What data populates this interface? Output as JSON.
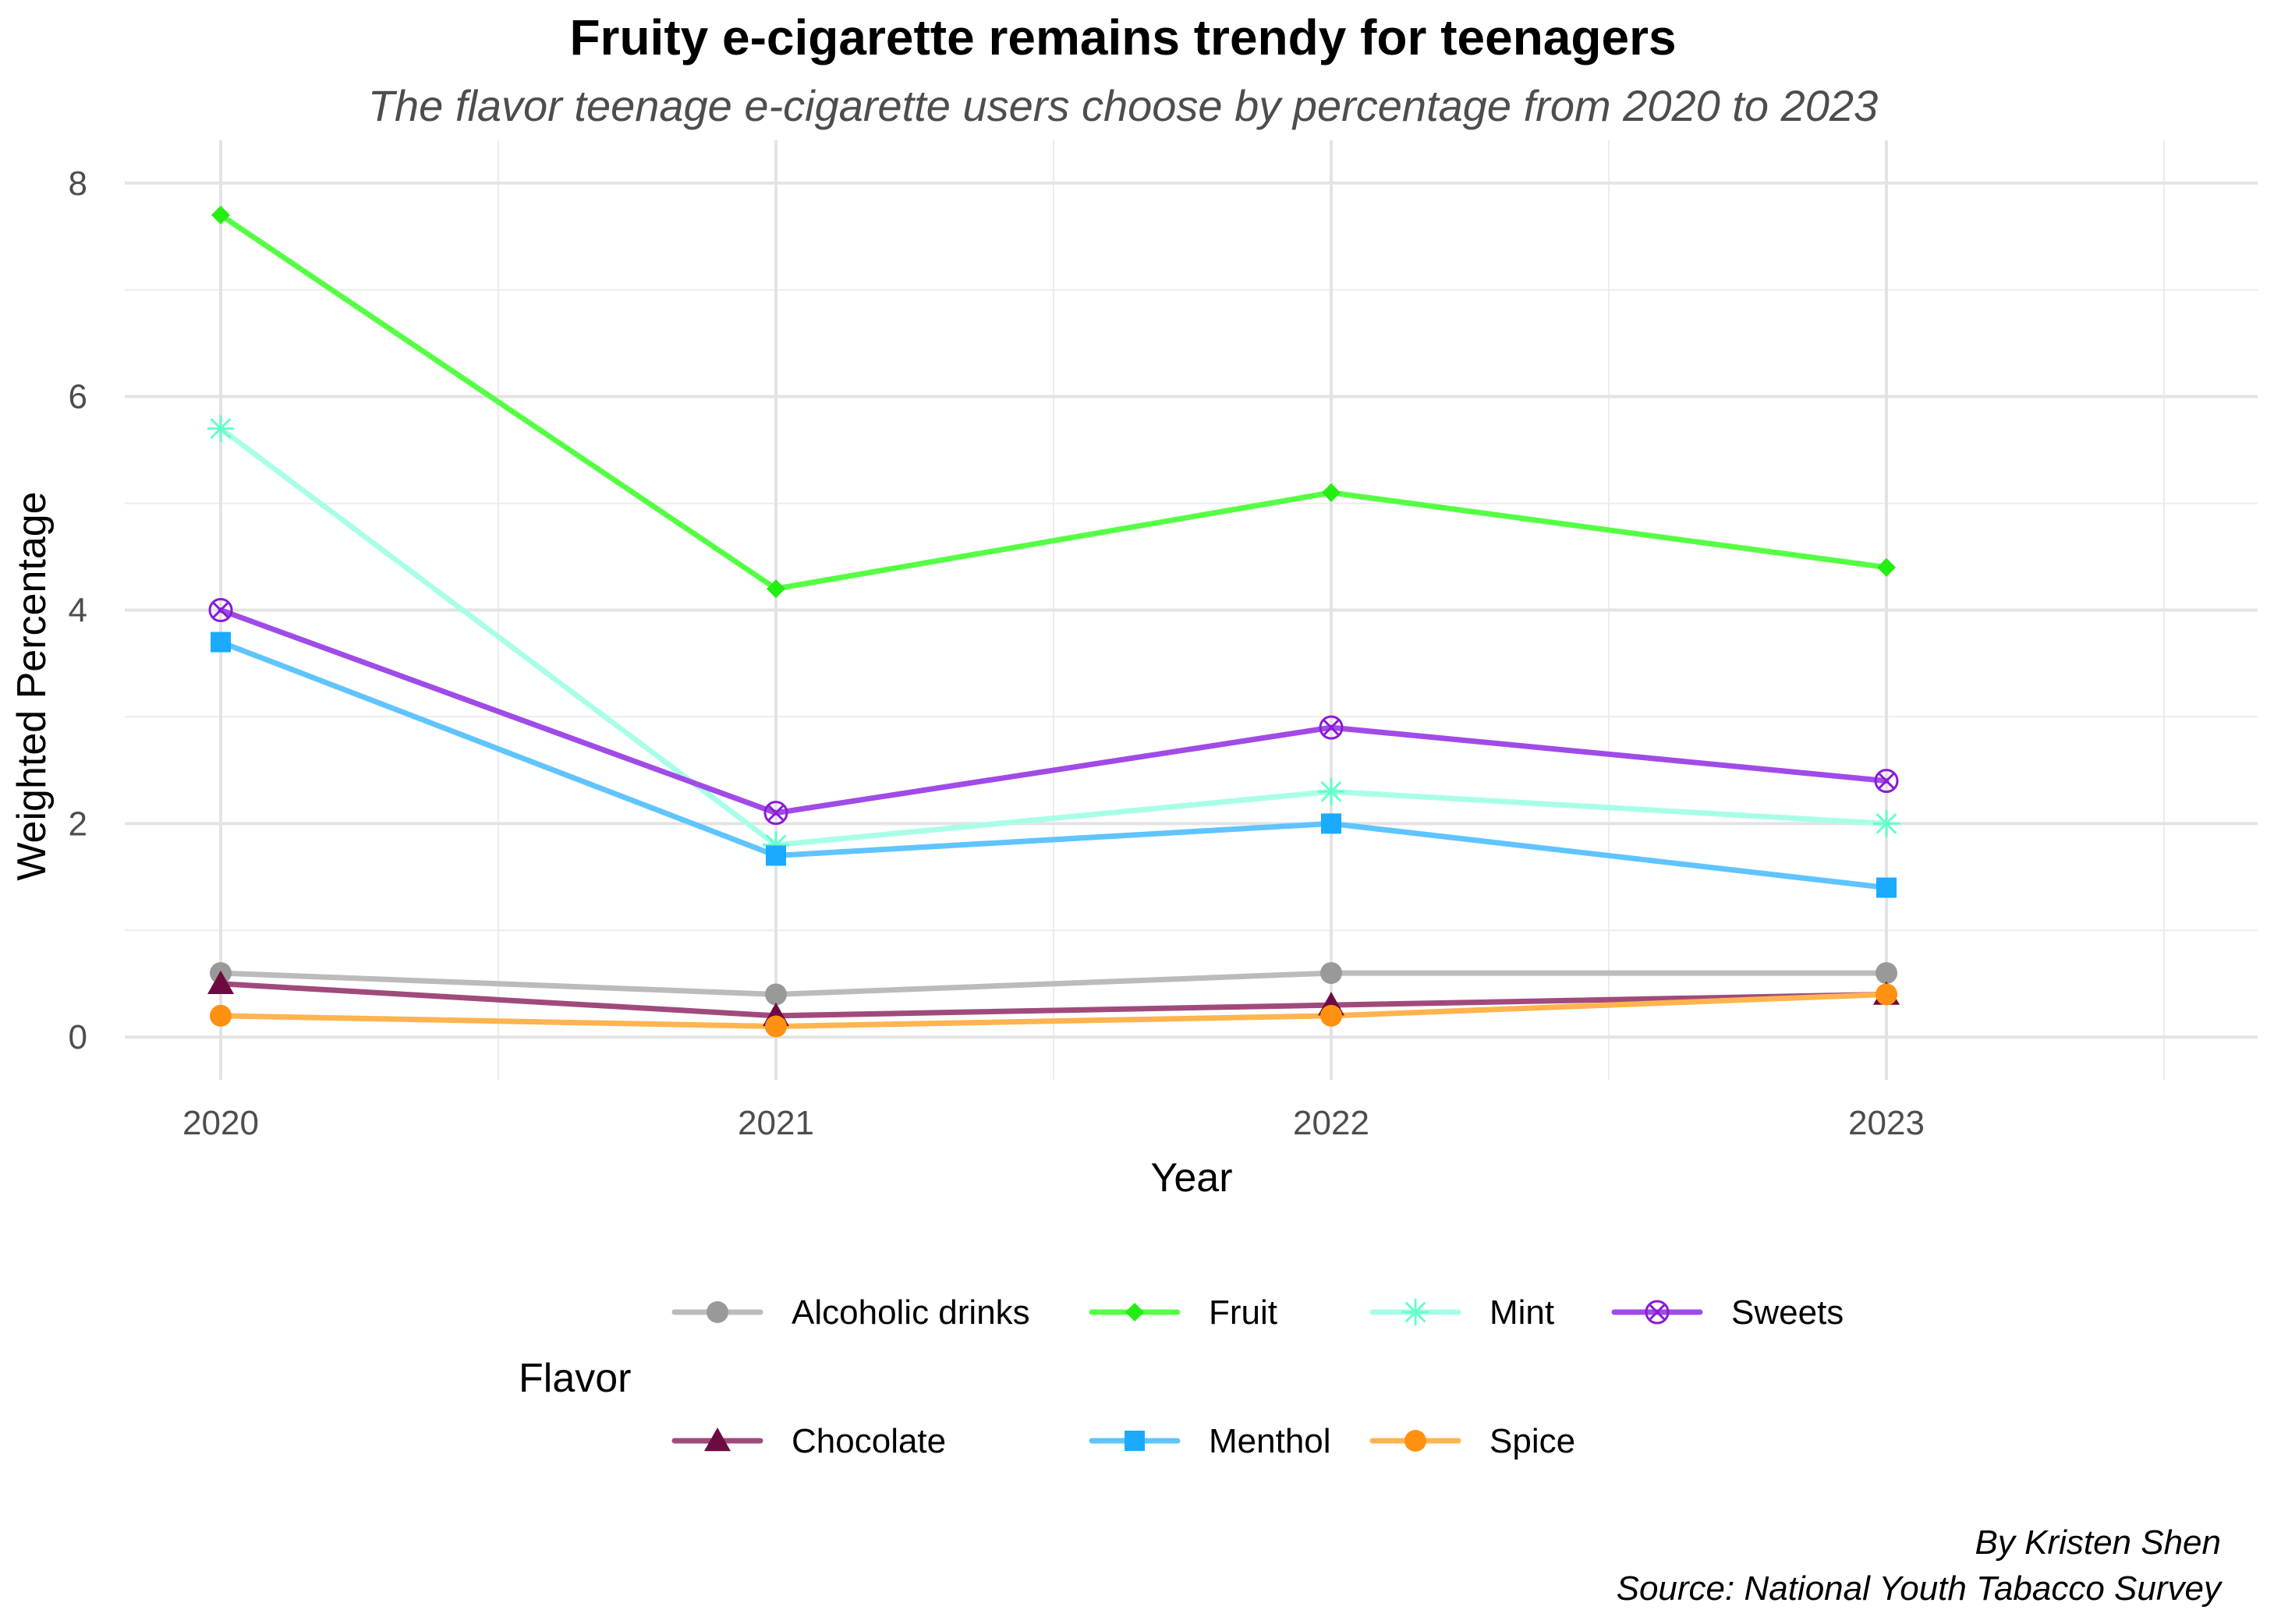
{
  "chart_data": {
    "type": "line",
    "title": "Fruity e-cigarette remains trendy for teenagers",
    "subtitle": "The flavor teenage e-cigarette users choose by percentage from 2020 to 2023",
    "xlabel": "Year",
    "ylabel": "Weighted Percentage",
    "x": [
      "2020",
      "2021",
      "2022",
      "2023"
    ],
    "y_ticks": [
      "0",
      "2",
      "4",
      "6",
      "8"
    ],
    "ylim": [
      -0.4,
      8.4
    ],
    "grid": true,
    "legend": {
      "title": "Flavor",
      "placement": "bottom"
    },
    "series": [
      {
        "name": "Alcoholic drinks",
        "values": [
          0.6,
          0.4,
          0.6,
          0.6
        ],
        "color": "#BBBBBB",
        "marker_color": "#999999",
        "marker": "circle"
      },
      {
        "name": "Fruit",
        "values": [
          7.7,
          4.2,
          5.1,
          4.4
        ],
        "color": "#55FF44",
        "marker_color": "#22EE11",
        "marker": "diamond"
      },
      {
        "name": "Mint",
        "values": [
          5.7,
          1.8,
          2.3,
          2.0
        ],
        "color": "#A8FFE8",
        "marker_color": "#66FFCC",
        "marker": "asterisk"
      },
      {
        "name": "Sweets",
        "values": [
          4.0,
          2.1,
          2.9,
          2.4
        ],
        "color": "#A04BE8",
        "marker_color": "#8A1BD6",
        "marker": "circle-x"
      },
      {
        "name": "Chocolate",
        "values": [
          0.5,
          0.2,
          0.3,
          0.4
        ],
        "color": "#A04A7C",
        "marker_color": "#6E0A42",
        "marker": "triangle"
      },
      {
        "name": "Menthol",
        "values": [
          3.7,
          1.7,
          2.0,
          1.4
        ],
        "color": "#5FC4FF",
        "marker_color": "#1AAAFF",
        "marker": "square"
      },
      {
        "name": "Spice",
        "values": [
          0.2,
          0.1,
          0.2,
          0.4
        ],
        "color": "#FFB44F",
        "marker_color": "#FF9010",
        "marker": "circle"
      }
    ],
    "caption": [
      "By Kristen Shen",
      "Source: National Youth Tabacco Survey"
    ]
  }
}
